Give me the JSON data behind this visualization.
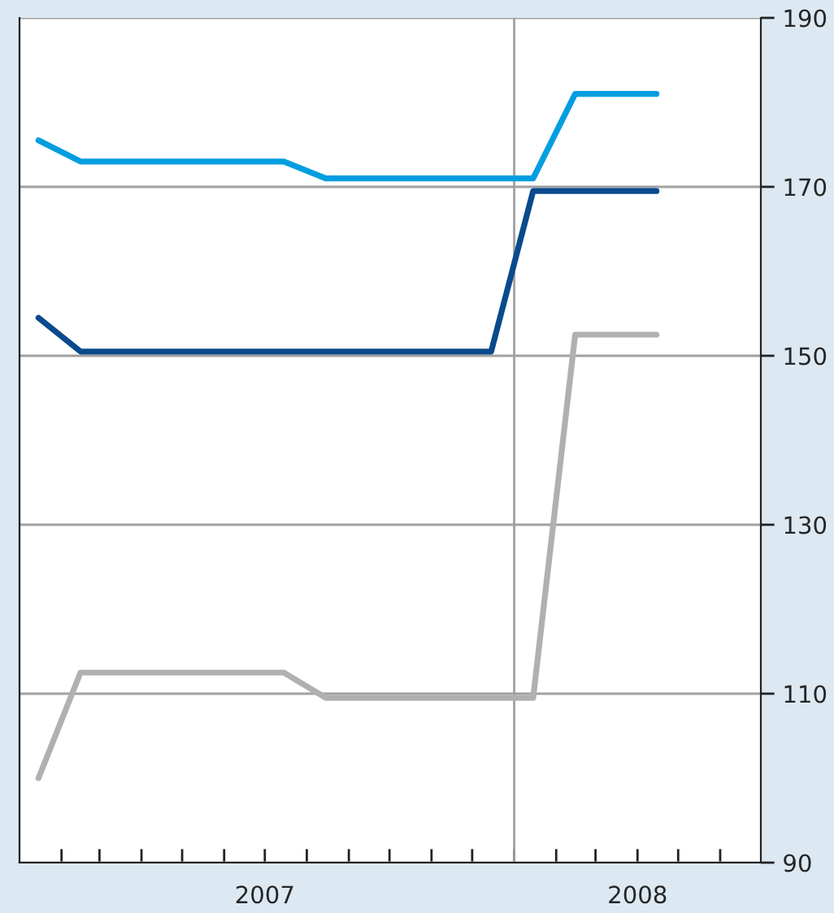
{
  "chart_data": {
    "type": "line",
    "x": [
      "2007-01-15",
      "2007-02-15",
      "2007-03-15",
      "2007-04-15",
      "2007-05-15",
      "2007-06-15",
      "2007-07-15",
      "2007-08-15",
      "2007-09-15",
      "2007-10-15",
      "2007-11-15",
      "2007-12-15",
      "2008-01-15",
      "2008-02-15",
      "2008-03-15",
      "2008-04-15"
    ],
    "series": [
      {
        "color": "#009ee0",
        "values": [
          175.5,
          173,
          173,
          173,
          173,
          173,
          173,
          171,
          171,
          171,
          171,
          171,
          171,
          181,
          181,
          181
        ]
      },
      {
        "color": "#0a4a8c",
        "values": [
          154.5,
          150.5,
          150.5,
          150.5,
          150.5,
          150.5,
          150.5,
          150.5,
          150.5,
          150.5,
          150.5,
          150.5,
          169.5,
          169.5,
          169.5,
          169.5
        ]
      },
      {
        "color": "#b0b0b0",
        "values": [
          100,
          112.5,
          112.5,
          112.5,
          112.5,
          112.5,
          112.5,
          109.5,
          109.5,
          109.5,
          109.5,
          109.5,
          109.5,
          152.5,
          152.5,
          152.5
        ]
      }
    ],
    "xlim": [
      "2007-01-01",
      "2008-07-01"
    ],
    "xticks": [
      {
        "value": "2007-02-01",
        "label": null
      },
      {
        "value": "2007-03-01",
        "label": null
      },
      {
        "value": "2007-04-01",
        "label": null
      },
      {
        "value": "2007-05-01",
        "label": null
      },
      {
        "value": "2007-06-01",
        "label": null
      },
      {
        "value": "2007-07-01",
        "label": "2007"
      },
      {
        "value": "2007-08-01",
        "label": null
      },
      {
        "value": "2007-09-01",
        "label": null
      },
      {
        "value": "2007-10-01",
        "label": null
      },
      {
        "value": "2007-11-01",
        "label": null
      },
      {
        "value": "2007-12-01",
        "label": null
      },
      {
        "value": "2008-01-01",
        "label": null
      },
      {
        "value": "2008-02-01",
        "label": null
      },
      {
        "value": "2008-03-01",
        "label": null
      },
      {
        "value": "2008-04-01",
        "label": "2008"
      },
      {
        "value": "2008-05-01",
        "label": null
      },
      {
        "value": "2008-06-01",
        "label": null
      }
    ],
    "ylim": [
      90,
      190
    ],
    "yticks": [
      90,
      110,
      130,
      150,
      170,
      190
    ],
    "grid": "y",
    "ref_lines": [
      {
        "axis": "x",
        "value": "2008-01-01",
        "color": "#a0a0a0"
      }
    ],
    "marker": "none",
    "line_style": "solid",
    "legend": false
  }
}
